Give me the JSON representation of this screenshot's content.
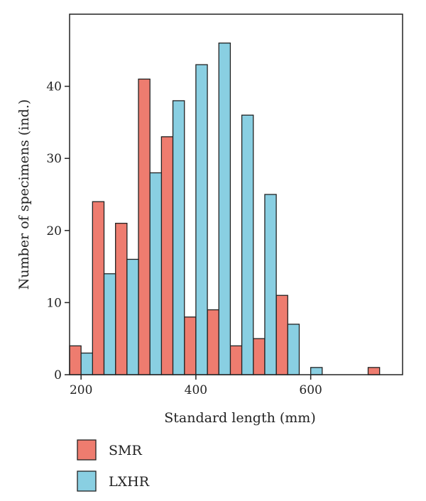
{
  "chart_data": {
    "type": "bar",
    "title": "",
    "xlabel": "Standard length (mm)",
    "ylabel": "Number of specimens (ind.)",
    "xlim": [
      180,
      760
    ],
    "ylim": [
      0,
      50
    ],
    "xticks": [
      200,
      400,
      600
    ],
    "yticks": [
      0,
      10,
      20,
      30,
      40
    ],
    "bin_width": 40,
    "bin_starts": [
      180,
      220,
      260,
      300,
      340,
      380,
      420,
      460,
      500,
      540,
      580,
      620,
      660,
      700
    ],
    "legend_position": "bottom-left",
    "grid": false,
    "series": [
      {
        "name": "SMR",
        "color": "#ee7c6f",
        "values": [
          4,
          24,
          21,
          41,
          33,
          8,
          9,
          4,
          5,
          11,
          0,
          0,
          0,
          1
        ]
      },
      {
        "name": "LXHR",
        "color": "#89cfe2",
        "values": [
          3,
          14,
          16,
          28,
          38,
          43,
          46,
          36,
          25,
          7,
          1,
          0,
          0,
          0
        ]
      }
    ]
  }
}
